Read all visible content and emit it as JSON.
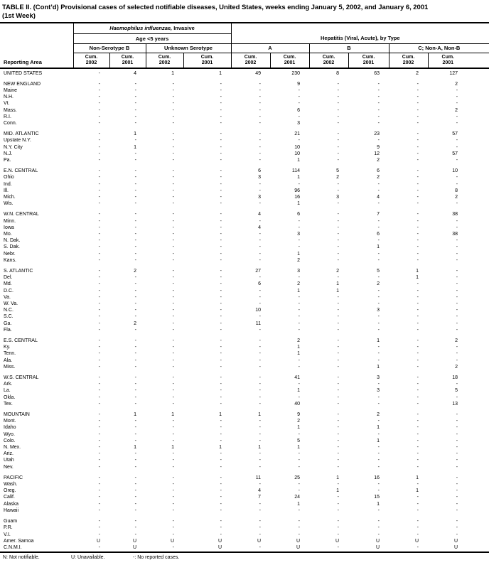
{
  "title": {
    "line1": "TABLE II. (Cont’d) Provisional cases of selected notifiable diseases, United States, weeks ending January 5, 2002, and January 6, 2001",
    "line2": "(1st Week)"
  },
  "table": {
    "reporting_area_label": "Reporting Area",
    "haemophilus_italic": "Haemophilus influenzae,",
    "haemophilus_rest": " Invasive",
    "age_label": "Age <5 years",
    "hepatitis_label": "Hepatitis (Viral, Acute), by Type",
    "subgroups": [
      "Non-Serotype B",
      "Unknown Serotype",
      "A",
      "B",
      "C; Non-A, Non-B"
    ],
    "cum_label": "Cum.",
    "year_pairs": [
      "2002",
      "2001",
      "2002",
      "2001",
      "2002",
      "2001",
      "2002",
      "2001",
      "2002",
      "2001"
    ]
  },
  "groups": [
    {
      "rows": [
        [
          "UNITED STATES",
          "-",
          "4",
          "1",
          "1",
          "49",
          "230",
          "8",
          "63",
          "2",
          "127"
        ]
      ]
    },
    {
      "rows": [
        [
          "NEW ENGLAND",
          "-",
          "-",
          "-",
          "-",
          "-",
          "9",
          "-",
          "-",
          "-",
          "2"
        ],
        [
          "Maine",
          "-",
          "-",
          "-",
          "-",
          "-",
          "-",
          "-",
          "-",
          "-",
          "-"
        ],
        [
          "N.H.",
          "-",
          "-",
          "-",
          "-",
          "-",
          "-",
          "-",
          "-",
          "-",
          "-"
        ],
        [
          "Vt.",
          "-",
          "-",
          "-",
          "-",
          "-",
          "-",
          "-",
          "-",
          "-",
          "-"
        ],
        [
          "Mass.",
          "-",
          "-",
          "-",
          "-",
          "-",
          "6",
          "-",
          "-",
          "-",
          "2"
        ],
        [
          "R.I.",
          "-",
          "-",
          "-",
          "-",
          "-",
          "-",
          "-",
          "-",
          "-",
          "-"
        ],
        [
          "Conn.",
          "-",
          "-",
          "-",
          "-",
          "-",
          "3",
          "-",
          "-",
          "-",
          "-"
        ]
      ]
    },
    {
      "rows": [
        [
          "MID. ATLANTIC",
          "-",
          "1",
          "-",
          "-",
          "-",
          "21",
          "-",
          "23",
          "-",
          "57"
        ],
        [
          "Upstate N.Y.",
          "-",
          "-",
          "-",
          "-",
          "-",
          "-",
          "-",
          "-",
          "-",
          "-"
        ],
        [
          "N.Y. City",
          "-",
          "1",
          "-",
          "-",
          "-",
          "10",
          "-",
          "9",
          "-",
          "-"
        ],
        [
          "N.J.",
          "-",
          "-",
          "-",
          "-",
          "-",
          "10",
          "-",
          "12",
          "-",
          "57"
        ],
        [
          "Pa.",
          "-",
          "-",
          "-",
          "-",
          "-",
          "1",
          "-",
          "2",
          "-",
          "-"
        ]
      ]
    },
    {
      "rows": [
        [
          "E.N. CENTRAL",
          "-",
          "-",
          "-",
          "-",
          "6",
          "114",
          "5",
          "6",
          "-",
          "10"
        ],
        [
          "Ohio",
          "-",
          "-",
          "-",
          "-",
          "3",
          "1",
          "2",
          "2",
          "-",
          "-"
        ],
        [
          "Ind.",
          "-",
          "-",
          "-",
          "-",
          "-",
          "-",
          "-",
          "-",
          "-",
          "-"
        ],
        [
          "Ill.",
          "-",
          "-",
          "-",
          "-",
          "-",
          "96",
          "-",
          "-",
          "-",
          "8"
        ],
        [
          "Mich.",
          "-",
          "-",
          "-",
          "-",
          "3",
          "16",
          "3",
          "4",
          "-",
          "2"
        ],
        [
          "Wis.",
          "-",
          "-",
          "-",
          "-",
          "-",
          "1",
          "-",
          "-",
          "-",
          "-"
        ]
      ]
    },
    {
      "rows": [
        [
          "W.N. CENTRAL",
          "-",
          "-",
          "-",
          "-",
          "4",
          "6",
          "-",
          "7",
          "-",
          "38"
        ],
        [
          "Minn.",
          "-",
          "-",
          "-",
          "-",
          "-",
          "-",
          "-",
          "-",
          "-",
          "-"
        ],
        [
          "Iowa",
          "-",
          "-",
          "-",
          "-",
          "4",
          "-",
          "-",
          "-",
          "-",
          "-"
        ],
        [
          "Mo.",
          "-",
          "-",
          "-",
          "-",
          "-",
          "3",
          "-",
          "6",
          "-",
          "38"
        ],
        [
          "N. Dak.",
          "-",
          "-",
          "-",
          "-",
          "-",
          "-",
          "-",
          "-",
          "-",
          "-"
        ],
        [
          "S. Dak.",
          "-",
          "-",
          "-",
          "-",
          "-",
          "-",
          "-",
          "1",
          "-",
          "-"
        ],
        [
          "Nebr.",
          "-",
          "-",
          "-",
          "-",
          "-",
          "1",
          "-",
          "-",
          "-",
          "-"
        ],
        [
          "Kans.",
          "-",
          "-",
          "-",
          "-",
          "-",
          "2",
          "-",
          "-",
          "-",
          "-"
        ]
      ]
    },
    {
      "rows": [
        [
          "S. ATLANTIC",
          "-",
          "2",
          "-",
          "-",
          "27",
          "3",
          "2",
          "5",
          "1",
          "-"
        ],
        [
          "Del.",
          "-",
          "-",
          "-",
          "-",
          "-",
          "-",
          "-",
          "-",
          "1",
          "-"
        ],
        [
          "Md.",
          "-",
          "-",
          "-",
          "-",
          "6",
          "2",
          "1",
          "2",
          "-",
          "-"
        ],
        [
          "D.C.",
          "-",
          "-",
          "-",
          "-",
          "-",
          "1",
          "1",
          "-",
          "-",
          "-"
        ],
        [
          "Va.",
          "-",
          "-",
          "-",
          "-",
          "-",
          "-",
          "-",
          "-",
          "-",
          "-"
        ],
        [
          "W. Va.",
          "-",
          "-",
          "-",
          "-",
          "-",
          "-",
          "-",
          "-",
          "-",
          "-"
        ],
        [
          "N.C.",
          "-",
          "-",
          "-",
          "-",
          "10",
          "-",
          "-",
          "3",
          "-",
          "-"
        ],
        [
          "S.C.",
          "-",
          "-",
          "-",
          "-",
          "-",
          "-",
          "-",
          "-",
          "-",
          "-"
        ],
        [
          "Ga.",
          "-",
          "2",
          "-",
          "-",
          "11",
          "-",
          "-",
          "-",
          "-",
          "-"
        ],
        [
          "Fla.",
          "-",
          "-",
          "-",
          "-",
          "-",
          "-",
          "-",
          "-",
          "-",
          "-"
        ]
      ]
    },
    {
      "rows": [
        [
          "E.S. CENTRAL",
          "-",
          "-",
          "-",
          "-",
          "-",
          "2",
          "-",
          "1",
          "-",
          "2"
        ],
        [
          "Ky.",
          "-",
          "-",
          "-",
          "-",
          "-",
          "1",
          "-",
          "-",
          "-",
          "-"
        ],
        [
          "Tenn.",
          "-",
          "-",
          "-",
          "-",
          "-",
          "1",
          "-",
          "-",
          "-",
          "-"
        ],
        [
          "Ala.",
          "-",
          "-",
          "-",
          "-",
          "-",
          "-",
          "-",
          "-",
          "-",
          "-"
        ],
        [
          "Miss.",
          "-",
          "-",
          "-",
          "-",
          "-",
          "-",
          "-",
          "1",
          "-",
          "2"
        ]
      ]
    },
    {
      "rows": [
        [
          "W.S. CENTRAL",
          "-",
          "-",
          "-",
          "-",
          "-",
          "41",
          "-",
          "3",
          "-",
          "18"
        ],
        [
          "Ark.",
          "-",
          "-",
          "-",
          "-",
          "-",
          "-",
          "-",
          "-",
          "-",
          "-"
        ],
        [
          "La.",
          "-",
          "-",
          "-",
          "-",
          "-",
          "1",
          "-",
          "3",
          "-",
          "5"
        ],
        [
          "Okla.",
          "-",
          "-",
          "-",
          "-",
          "-",
          "-",
          "-",
          "-",
          "-",
          "-"
        ],
        [
          "Tex.",
          "-",
          "-",
          "-",
          "-",
          "-",
          "40",
          "-",
          "-",
          "-",
          "13"
        ]
      ]
    },
    {
      "rows": [
        [
          "MOUNTAIN",
          "-",
          "1",
          "1",
          "1",
          "1",
          "9",
          "-",
          "2",
          "-",
          "-"
        ],
        [
          "Mont.",
          "-",
          "-",
          "-",
          "-",
          "-",
          "2",
          "-",
          "-",
          "-",
          "-"
        ],
        [
          "Idaho",
          "-",
          "-",
          "-",
          "-",
          "-",
          "1",
          "-",
          "1",
          "-",
          "-"
        ],
        [
          "Wyo.",
          "-",
          "-",
          "-",
          "-",
          "-",
          "-",
          "-",
          "-",
          "-",
          "-"
        ],
        [
          "Colo.",
          "-",
          "-",
          "-",
          "-",
          "-",
          "5",
          "-",
          "1",
          "-",
          "-"
        ],
        [
          "N. Mex.",
          "-",
          "1",
          "1",
          "1",
          "1",
          "1",
          "-",
          "-",
          "-",
          "-"
        ],
        [
          "Ariz.",
          "-",
          "-",
          "-",
          "-",
          "-",
          "-",
          "-",
          "-",
          "-",
          "-"
        ],
        [
          "Utah",
          "-",
          "-",
          "-",
          "-",
          "-",
          "-",
          "-",
          "-",
          "-",
          "-"
        ],
        [
          "Nev.",
          "-",
          "-",
          "-",
          "-",
          "-",
          "-",
          "-",
          "-",
          "-",
          "-"
        ]
      ]
    },
    {
      "rows": [
        [
          "PACIFIC",
          "-",
          "-",
          "-",
          "-",
          "11",
          "25",
          "1",
          "16",
          "1",
          "-"
        ],
        [
          "Wash.",
          "-",
          "-",
          "-",
          "-",
          "-",
          "-",
          "-",
          "-",
          "-",
          "-"
        ],
        [
          "Oreg.",
          "-",
          "-",
          "-",
          "-",
          "4",
          "-",
          "1",
          "-",
          "1",
          "-"
        ],
        [
          "Calif.",
          "-",
          "-",
          "-",
          "-",
          "7",
          "24",
          "-",
          "15",
          "-",
          "-"
        ],
        [
          "Alaska",
          "-",
          "-",
          "-",
          "-",
          "-",
          "1",
          "-",
          "1",
          "-",
          "-"
        ],
        [
          "Hawaii",
          "-",
          "-",
          "-",
          "-",
          "-",
          "-",
          "-",
          "-",
          "-",
          "-"
        ]
      ]
    },
    {
      "rows": [
        [
          "Guam",
          "-",
          "-",
          "-",
          "-",
          "-",
          "-",
          "-",
          "-",
          "-",
          "-"
        ],
        [
          "P.R.",
          "-",
          "-",
          "-",
          "-",
          "-",
          "-",
          "-",
          "-",
          "-",
          "-"
        ],
        [
          "V.I.",
          "-",
          "-",
          "-",
          "-",
          "-",
          "-",
          "-",
          "-",
          "-",
          "-"
        ],
        [
          "Amer. Samoa",
          "U",
          "U",
          "U",
          "U",
          "U",
          "U",
          "U",
          "U",
          "U",
          "U"
        ],
        [
          "C.N.M.I.",
          "-",
          "U",
          "-",
          "U",
          "-",
          "U",
          "-",
          "U",
          "-",
          "U"
        ]
      ]
    }
  ],
  "footnotes": [
    "N: Not notifiable.",
    "U: Unavailable.",
    "-: No reported cases."
  ],
  "colors": {
    "text": "#000000",
    "background": "#ffffff",
    "border": "#000000"
  }
}
